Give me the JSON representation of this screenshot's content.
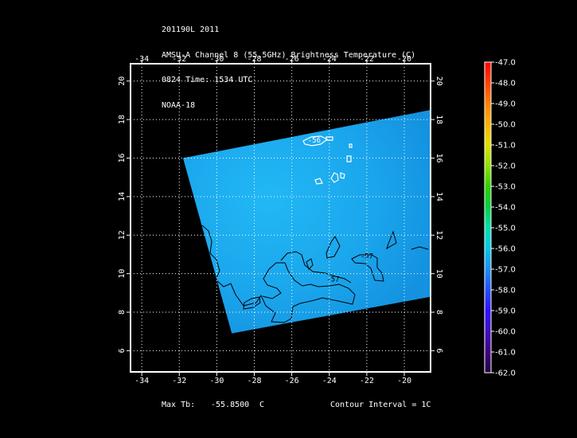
{
  "header": {
    "line1": "201190L 2011",
    "line2": "AMSU-A Channel 8 (55.5GHz) Brightness Temperature (C)",
    "line3": "0824 Time: 1534 UTC",
    "line4": "NOAA-18"
  },
  "footer": {
    "max_label": "Max Tb:",
    "max_value": "-55.8500",
    "max_unit": "C",
    "contour_interval": "Contour Interval = 1C"
  },
  "colors": {
    "background": "#000000",
    "frame": "#ffffff",
    "field": "#1aa8ec",
    "contour_cold": "#000000",
    "contour_warm": "#ffffff"
  },
  "chart_data": {
    "type": "heatmap",
    "title": "AMSU-A Channel 8 (55.5GHz) Brightness Temperature (C)",
    "x_ticks": [
      -34,
      -32,
      -30,
      -28,
      -26,
      -24,
      -22,
      -20
    ],
    "y_ticks": [
      6,
      8,
      10,
      12,
      14,
      16,
      18,
      20
    ],
    "xlim": [
      -34.6,
      -18.6
    ],
    "ylim": [
      4.9,
      20.9
    ],
    "grid": true,
    "swath_corners": [
      [
        -31.8,
        16.0
      ],
      [
        -18.6,
        18.5
      ],
      [
        -18.6,
        8.8
      ],
      [
        -29.2,
        6.9
      ]
    ],
    "field_value_range": [
      -57.0,
      -55.85
    ],
    "contour_labels": [
      {
        "text": "-57",
        "lon": -22.0,
        "lat": 10.8
      },
      {
        "text": "-57",
        "lon": -23.8,
        "lat": 9.6
      },
      {
        "text": "-56",
        "lon": -24.8,
        "lat": 16.8
      }
    ],
    "colorbar": {
      "values": [
        -47.0,
        -48.0,
        -49.0,
        -50.0,
        -51.0,
        -52.0,
        -53.0,
        -54.0,
        -55.0,
        -56.0,
        -57.0,
        -58.0,
        -59.0,
        -60.0,
        -61.0,
        -62.0
      ],
      "colors": [
        "#ff0000",
        "#ff4000",
        "#ff8000",
        "#ffb000",
        "#e0e000",
        "#90e000",
        "#30d000",
        "#00d040",
        "#00e0b0",
        "#00c8e8",
        "#1a90f0",
        "#2050f8",
        "#3010ff",
        "#4010c0",
        "#400080",
        "#200040"
      ]
    }
  }
}
